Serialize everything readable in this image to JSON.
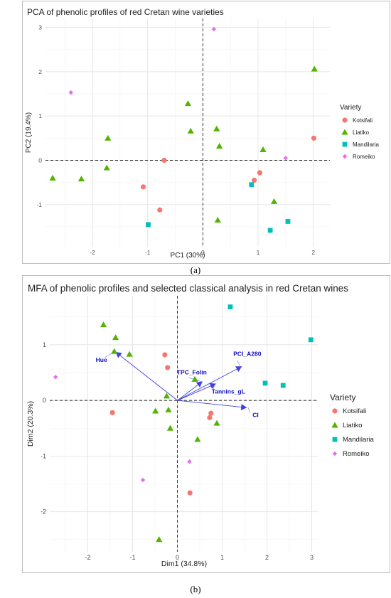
{
  "colors": {
    "Kotsifali": "#F8766D",
    "Liatiko": "#53B400",
    "Mandilaria": "#00C0B8",
    "Romeiko": "#E76BF3",
    "arrow": "#4040E0",
    "arrow_label": "#1010C0"
  },
  "chart_data": [
    {
      "type": "scatter",
      "title": "PCA of phenolic profiles of red Cretan wine varieties",
      "xlabel": "PC1 (30%)",
      "ylabel": "PC2 (19.4%)",
      "xlim": [
        -2.85,
        2.3
      ],
      "ylim": [
        -1.95,
        3.2
      ],
      "xticks": [
        -2,
        -1,
        0,
        1,
        2
      ],
      "yticks": [
        -1,
        0,
        1,
        2,
        3
      ],
      "grid": true,
      "reference_lines": "dashed at x=0 and y=0",
      "legend": {
        "title": "Variety",
        "position": "right",
        "entries": [
          "Kotsifali",
          "Liatiko",
          "Mandilaria",
          "Romeiko"
        ]
      },
      "series": [
        {
          "name": "Kotsifali",
          "shape": "circle",
          "points": [
            [
              -1.08,
              -0.6
            ],
            [
              -0.78,
              -1.12
            ],
            [
              -0.7,
              0.0
            ],
            [
              0.93,
              -0.45
            ],
            [
              1.03,
              -0.28
            ],
            [
              2.01,
              0.5
            ]
          ]
        },
        {
          "name": "Liatiko",
          "shape": "triangle",
          "points": [
            [
              -2.72,
              -0.4
            ],
            [
              -2.2,
              -0.42
            ],
            [
              -1.72,
              0.5
            ],
            [
              -1.74,
              -0.17
            ],
            [
              -0.27,
              1.28
            ],
            [
              -0.22,
              0.66
            ],
            [
              0.25,
              0.71
            ],
            [
              0.3,
              0.32
            ],
            [
              1.09,
              0.24
            ],
            [
              1.29,
              -0.93
            ],
            [
              0.27,
              -1.35
            ],
            [
              2.02,
              2.06
            ]
          ]
        },
        {
          "name": "Mandilaria",
          "shape": "square",
          "points": [
            [
              -0.99,
              -1.45
            ],
            [
              0.88,
              -0.55
            ],
            [
              1.22,
              -1.58
            ],
            [
              1.54,
              -1.38
            ]
          ]
        },
        {
          "name": "Romeiko",
          "shape": "diamond",
          "points": [
            [
              -2.39,
              1.53
            ],
            [
              0.2,
              2.96
            ],
            [
              1.5,
              0.05
            ]
          ]
        }
      ]
    },
    {
      "type": "scatter",
      "title": "MFA of phenolic profiles and selected classical analysis in red Cretan wines",
      "xlabel": "Dim1 (34.8%)",
      "ylabel": "Dim2 (20.3%)",
      "xlim": [
        -2.85,
        3.15
      ],
      "ylim": [
        -2.72,
        1.88
      ],
      "xticks": [
        -2,
        -1,
        0,
        1,
        2,
        3
      ],
      "yticks": [
        -2,
        -1,
        0,
        1
      ],
      "grid": true,
      "reference_lines": "dashed at x=0 and y=0",
      "legend": {
        "title": "Variety",
        "position": "right",
        "entries": [
          "Kotsifali",
          "Liatiko",
          "Mandilaria",
          "Romeiko"
        ]
      },
      "arrows": [
        {
          "name": "Hue",
          "x": -1.38,
          "y": 0.87
        },
        {
          "name": "TPC_Folin",
          "x": 0.56,
          "y": 0.34
        },
        {
          "name": "PCI_A280",
          "x": 1.44,
          "y": 0.61
        },
        {
          "name": "Tannins_gL",
          "x": 0.86,
          "y": 0.3
        },
        {
          "name": "CI",
          "x": 1.55,
          "y": -0.13
        }
      ],
      "series": [
        {
          "name": "Kotsifali",
          "shape": "circle",
          "points": [
            [
              -1.45,
              -0.22
            ],
            [
              -0.28,
              0.82
            ],
            [
              -0.22,
              0.59
            ],
            [
              0.75,
              -0.23
            ],
            [
              0.72,
              -0.31
            ],
            [
              0.28,
              -1.66
            ]
          ]
        },
        {
          "name": "Liatiko",
          "shape": "triangle",
          "points": [
            [
              -1.65,
              1.36
            ],
            [
              -1.38,
              1.13
            ],
            [
              -1.41,
              0.88
            ],
            [
              -1.07,
              0.83
            ],
            [
              -0.24,
              0.08
            ],
            [
              0.39,
              0.38
            ],
            [
              -0.49,
              -0.19
            ],
            [
              -0.2,
              -0.17
            ],
            [
              -0.16,
              -0.5
            ],
            [
              0.88,
              -0.41
            ],
            [
              0.45,
              -0.7
            ],
            [
              -0.41,
              -2.5
            ]
          ]
        },
        {
          "name": "Mandilaria",
          "shape": "square",
          "points": [
            [
              1.18,
              1.68
            ],
            [
              2.98,
              1.09
            ],
            [
              1.96,
              0.31
            ],
            [
              2.36,
              0.27
            ]
          ]
        },
        {
          "name": "Romeiko",
          "shape": "diamond",
          "points": [
            [
              -2.72,
              0.42
            ],
            [
              0.27,
              -1.1
            ],
            [
              -0.77,
              -1.43
            ]
          ]
        }
      ]
    }
  ],
  "captions": [
    "(a)",
    "(b)"
  ]
}
